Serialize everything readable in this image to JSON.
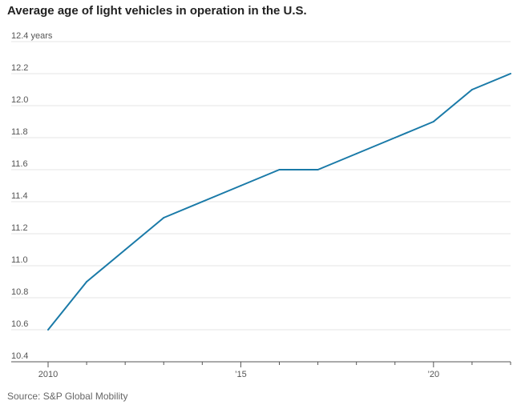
{
  "chart_data": {
    "type": "line",
    "title": "Average age of light vehicles in operation in the U.S.",
    "source": "Source: S&P Global Mobility",
    "xlabel": "",
    "ylabel": "",
    "ylim": [
      10.4,
      12.4
    ],
    "xlim": [
      2010,
      2022
    ],
    "y_ticks": [
      {
        "value": 12.4,
        "label": "12.4 years"
      },
      {
        "value": 12.2,
        "label": "12.2"
      },
      {
        "value": 12.0,
        "label": "12.0"
      },
      {
        "value": 11.8,
        "label": "11.8"
      },
      {
        "value": 11.6,
        "label": "11.6"
      },
      {
        "value": 11.4,
        "label": "11.4"
      },
      {
        "value": 11.2,
        "label": "11.2"
      },
      {
        "value": 11.0,
        "label": "11.0"
      },
      {
        "value": 10.8,
        "label": "10.8"
      },
      {
        "value": 10.6,
        "label": "10.6"
      },
      {
        "value": 10.4,
        "label": "10.4"
      }
    ],
    "x_ticks": [
      {
        "value": 2010,
        "label": "2010"
      },
      {
        "value": 2015,
        "label": "’15"
      },
      {
        "value": 2020,
        "label": "’20"
      }
    ],
    "x_minor_ticks": [
      2011,
      2012,
      2013,
      2014,
      2016,
      2017,
      2018,
      2019,
      2021,
      2022
    ],
    "grid": true,
    "series": [
      {
        "color": "#1a7aa8",
        "x": [
          2010,
          2011,
          2012,
          2013,
          2014,
          2015,
          2016,
          2017,
          2018,
          2019,
          2020,
          2021,
          2022
        ],
        "values": [
          10.6,
          10.9,
          11.1,
          11.3,
          11.4,
          11.5,
          11.6,
          11.6,
          11.7,
          11.8,
          11.9,
          12.1,
          12.2
        ]
      }
    ]
  }
}
